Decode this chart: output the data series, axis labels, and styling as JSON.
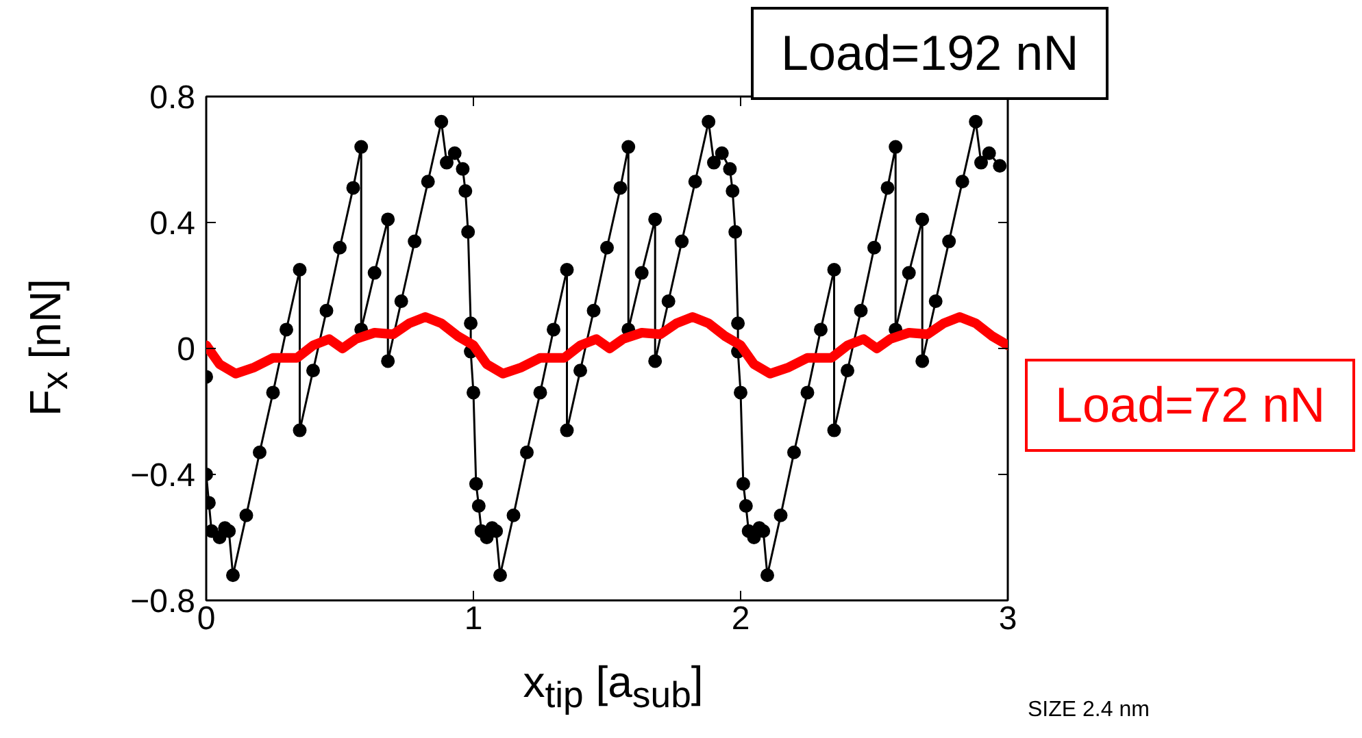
{
  "chart_data": {
    "type": "line",
    "xlabel": "x$_{tip}$ [a$_{sub}$]",
    "ylabel": "F$_{x}$ [nN]",
    "xlim": [
      0,
      3
    ],
    "xticks": [
      0,
      1,
      2,
      3
    ],
    "ylim": [
      -0.8,
      0.8
    ],
    "yticks": [
      {
        "value": -0.8,
        "label": "−0.8"
      },
      {
        "value": -0.4,
        "label": "−0.4"
      },
      0,
      0.4,
      0.8
    ],
    "annotations": [
      "SIZE 2.4 nm"
    ],
    "series": [
      {
        "name": "Load=192 nN",
        "color": "#000000",
        "marker": "circle",
        "x": [
          0,
          0,
          0.01,
          0.02,
          0.05,
          0.07,
          0.085,
          0.1,
          0.15,
          0.2,
          0.25,
          0.3,
          0.35,
          0.35,
          0.4,
          0.45,
          0.5,
          0.55,
          0.58,
          0.58,
          0.63,
          0.68,
          0.68,
          0.73,
          0.78,
          0.83,
          0.88,
          0.9,
          0.93,
          0.96,
          0.97,
          0.98,
          0.99,
          0.99,
          1.0,
          1.01,
          1.02,
          1.03,
          1.05,
          1.07,
          1.085,
          1.1,
          1.15,
          1.2,
          1.25,
          1.3,
          1.35,
          1.35,
          1.4,
          1.45,
          1.5,
          1.55,
          1.58,
          1.58,
          1.63,
          1.68,
          1.68,
          1.73,
          1.78,
          1.83,
          1.88,
          1.9,
          1.93,
          1.96,
          1.97,
          1.98,
          1.99,
          1.99,
          2.0,
          2.01,
          2.02,
          2.03,
          2.05,
          2.07,
          2.085,
          2.1,
          2.15,
          2.2,
          2.25,
          2.3,
          2.35,
          2.35,
          2.4,
          2.45,
          2.5,
          2.55,
          2.58,
          2.58,
          2.63,
          2.68,
          2.68,
          2.73,
          2.78,
          2.83,
          2.88,
          2.9,
          2.93,
          2.97
        ],
        "values": [
          -0.09,
          -0.4,
          -0.49,
          -0.58,
          -0.6,
          -0.57,
          -0.58,
          -0.72,
          -0.53,
          -0.33,
          -0.14,
          0.06,
          0.25,
          -0.26,
          -0.07,
          0.12,
          0.32,
          0.51,
          0.64,
          0.06,
          0.24,
          0.41,
          -0.04,
          0.15,
          0.34,
          0.53,
          0.72,
          0.59,
          0.62,
          0.57,
          0.5,
          0.37,
          0.08,
          -0.01,
          -0.14,
          -0.43,
          -0.5,
          -0.58,
          -0.6,
          -0.57,
          -0.58,
          -0.72,
          -0.53,
          -0.33,
          -0.14,
          0.06,
          0.25,
          -0.26,
          -0.07,
          0.12,
          0.32,
          0.51,
          0.64,
          0.06,
          0.24,
          0.41,
          -0.04,
          0.15,
          0.34,
          0.53,
          0.72,
          0.59,
          0.62,
          0.57,
          0.5,
          0.37,
          0.08,
          -0.01,
          -0.14,
          -0.43,
          -0.5,
          -0.58,
          -0.6,
          -0.57,
          -0.58,
          -0.72,
          -0.53,
          -0.33,
          -0.14,
          0.06,
          0.25,
          -0.26,
          -0.07,
          0.12,
          0.32,
          0.51,
          0.64,
          0.06,
          0.24,
          0.41,
          -0.04,
          0.15,
          0.34,
          0.53,
          0.72,
          0.59,
          0.62,
          0.58
        ]
      },
      {
        "name": "Load=72 nN",
        "color": "#ff0000",
        "marker": "none",
        "x": [
          0.0,
          0.05,
          0.11,
          0.18,
          0.25,
          0.34,
          0.4,
          0.46,
          0.51,
          0.56,
          0.63,
          0.7,
          0.76,
          0.82,
          0.88,
          0.94,
          1.0,
          1.05,
          1.11,
          1.18,
          1.25,
          1.34,
          1.4,
          1.46,
          1.51,
          1.56,
          1.63,
          1.7,
          1.76,
          1.82,
          1.88,
          1.94,
          2.0,
          2.05,
          2.11,
          2.18,
          2.25,
          2.34,
          2.4,
          2.46,
          2.51,
          2.56,
          2.63,
          2.7,
          2.76,
          2.82,
          2.88,
          2.94,
          3.0
        ],
        "values": [
          0.01,
          -0.05,
          -0.08,
          -0.06,
          -0.03,
          -0.03,
          0.01,
          0.03,
          0.0,
          0.03,
          0.05,
          0.045,
          0.08,
          0.1,
          0.08,
          0.04,
          0.01,
          -0.05,
          -0.08,
          -0.06,
          -0.03,
          -0.03,
          0.01,
          0.03,
          0.0,
          0.03,
          0.05,
          0.045,
          0.08,
          0.1,
          0.08,
          0.04,
          0.01,
          -0.05,
          -0.08,
          -0.06,
          -0.03,
          -0.03,
          0.01,
          0.03,
          0.0,
          0.03,
          0.05,
          0.045,
          0.08,
          0.1,
          0.08,
          0.04,
          0.01
        ]
      }
    ]
  }
}
